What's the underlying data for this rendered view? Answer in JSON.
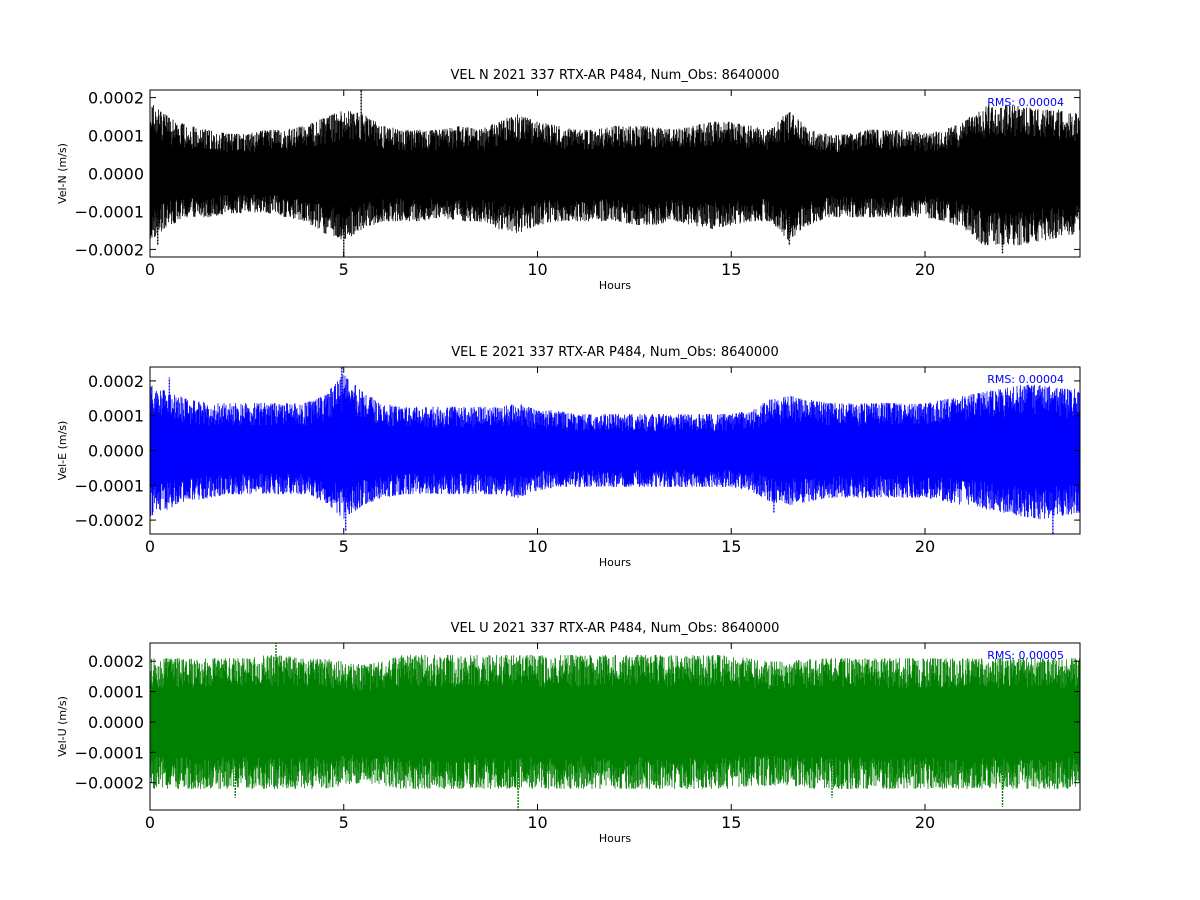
{
  "chart_data": [
    {
      "type": "line",
      "title": "VEL N 2021 337 RTX-AR  P484, Num_Obs: 8640000",
      "xlabel": "Hours",
      "ylabel": "Vel-N (m/s)",
      "xlim": [
        0,
        24
      ],
      "ylim": [
        -0.00022,
        0.00022
      ],
      "xticks": [
        0,
        5,
        10,
        15,
        20
      ],
      "xtick_labels": [
        "0",
        "5",
        "10",
        "15",
        "20"
      ],
      "yticks": [
        -0.0002,
        -0.0001,
        0.0,
        0.0001,
        0.0002
      ],
      "ytick_labels": [
        "−0.0002",
        "−0.0001",
        "0.0000",
        "0.0001",
        "0.0002"
      ],
      "annotation": "RMS:  0.00004",
      "annotation_color": "#0000ff",
      "grid": false,
      "series": [
        {
          "color": "#000000",
          "x": [
            0,
            0.5,
            1,
            1.5,
            2,
            2.5,
            3,
            3.5,
            4,
            4.5,
            5,
            5.5,
            6,
            6.5,
            7,
            7.5,
            8,
            8.5,
            9,
            9.5,
            10,
            10.5,
            11,
            11.5,
            12,
            12.5,
            13,
            13.5,
            14,
            14.5,
            15,
            15.5,
            16,
            16.5,
            17,
            17.5,
            18,
            18.5,
            19,
            19.5,
            20,
            20.5,
            21,
            21.5,
            22,
            22.5,
            23,
            23.5,
            24
          ],
          "upper": [
            0.00018,
            0.00014,
            0.00012,
            0.00011,
            0.0001,
            0.0001,
            0.00011,
            0.00011,
            0.00012,
            0.00014,
            0.00016,
            0.00015,
            0.00012,
            0.00011,
            0.00011,
            0.00011,
            0.00012,
            0.00011,
            0.00013,
            0.00015,
            0.00013,
            0.00012,
            0.00011,
            0.00011,
            0.00012,
            0.00012,
            0.00012,
            0.00011,
            0.00012,
            0.00013,
            0.00013,
            0.00012,
            0.00011,
            0.00016,
            0.00011,
            0.0001,
            0.0001,
            0.00011,
            0.00011,
            0.00011,
            0.0001,
            0.00011,
            0.00013,
            0.00017,
            0.00017,
            0.00017,
            0.00016,
            0.00016,
            0.00015
          ],
          "lower": [
            -0.00017,
            -0.00013,
            -0.00011,
            -0.00011,
            -0.0001,
            -0.0001,
            -0.0001,
            -0.00011,
            -0.00012,
            -0.00015,
            -0.00017,
            -0.00014,
            -0.00012,
            -0.00012,
            -0.00012,
            -0.00011,
            -0.00012,
            -0.00012,
            -0.00014,
            -0.00015,
            -0.00013,
            -0.00012,
            -0.00012,
            -0.00012,
            -0.00012,
            -0.00013,
            -0.00013,
            -0.00012,
            -0.00013,
            -0.00014,
            -0.00013,
            -0.00012,
            -0.00012,
            -0.00017,
            -0.00013,
            -0.00011,
            -0.00011,
            -0.00011,
            -0.00011,
            -0.00011,
            -0.00011,
            -0.00012,
            -0.00014,
            -0.00018,
            -0.00018,
            -0.00018,
            -0.00017,
            -0.00016,
            -0.00015
          ],
          "spikes": [
            [
              5.45,
              0.00022
            ],
            [
              5.0,
              -0.00022
            ],
            [
              22.0,
              -0.00021
            ],
            [
              0.2,
              -0.00019
            ],
            [
              16.5,
              -0.00019
            ]
          ]
        }
      ]
    },
    {
      "type": "line",
      "title": "VEL E 2021 337 RTX-AR  P484, Num_Obs: 8640000",
      "xlabel": "Hours",
      "ylabel": "Vel-E (m/s)",
      "xlim": [
        0,
        24
      ],
      "ylim": [
        -0.00024,
        0.00024
      ],
      "xticks": [
        0,
        5,
        10,
        15,
        20
      ],
      "xtick_labels": [
        "0",
        "5",
        "10",
        "15",
        "20"
      ],
      "yticks": [
        -0.0002,
        -0.0001,
        0.0,
        0.0001,
        0.0002
      ],
      "ytick_labels": [
        "−0.0002",
        "−0.0001",
        "0.0000",
        "0.0001",
        "0.0002"
      ],
      "annotation": "RMS:  0.00004",
      "annotation_color": "#0000ff",
      "grid": false,
      "series": [
        {
          "color": "#0000ff",
          "x": [
            0,
            0.5,
            1,
            1.5,
            2,
            2.5,
            3,
            3.5,
            4,
            4.5,
            5,
            5.5,
            6,
            6.5,
            7,
            7.5,
            8,
            8.5,
            9,
            9.5,
            10,
            10.5,
            11,
            11.5,
            12,
            12.5,
            13,
            13.5,
            14,
            14.5,
            15,
            15.5,
            16,
            16.5,
            17,
            17.5,
            18,
            18.5,
            19,
            19.5,
            20,
            20.5,
            21,
            21.5,
            22,
            22.5,
            23,
            23.5,
            24
          ],
          "upper": [
            0.00018,
            0.00016,
            0.00014,
            0.00013,
            0.00013,
            0.00013,
            0.00013,
            0.00013,
            0.00013,
            0.00015,
            0.00021,
            0.00016,
            0.00013,
            0.00012,
            0.00012,
            0.00012,
            0.00012,
            0.00012,
            0.00012,
            0.00013,
            0.00011,
            0.00011,
            0.0001,
            0.0001,
            0.0001,
            0.0001,
            0.0001,
            0.0001,
            0.0001,
            0.0001,
            0.0001,
            0.00011,
            0.00014,
            0.00015,
            0.00014,
            0.00013,
            0.00013,
            0.00013,
            0.00013,
            0.00013,
            0.00013,
            0.00014,
            0.00015,
            0.00016,
            0.00017,
            0.00018,
            0.00018,
            0.00017,
            0.00017
          ],
          "lower": [
            -0.00018,
            -0.00016,
            -0.00014,
            -0.00013,
            -0.00012,
            -0.00012,
            -0.00012,
            -0.00012,
            -0.00012,
            -0.00014,
            -0.00019,
            -0.00015,
            -0.00013,
            -0.00012,
            -0.00012,
            -0.00012,
            -0.00012,
            -0.00012,
            -0.00012,
            -0.00013,
            -0.00011,
            -0.0001,
            -0.0001,
            -0.0001,
            -0.0001,
            -0.0001,
            -0.0001,
            -0.0001,
            -0.0001,
            -0.0001,
            -0.0001,
            -0.00011,
            -0.00014,
            -0.00015,
            -0.00014,
            -0.00013,
            -0.00013,
            -0.00013,
            -0.00013,
            -0.00013,
            -0.00013,
            -0.00014,
            -0.00015,
            -0.00016,
            -0.00017,
            -0.00018,
            -0.00019,
            -0.00018,
            -0.00017
          ],
          "spikes": [
            [
              4.95,
              0.00024
            ],
            [
              5.05,
              -0.00023
            ],
            [
              23.3,
              -0.00024
            ],
            [
              0.5,
              0.00021
            ],
            [
              16.1,
              -0.00018
            ]
          ]
        }
      ]
    },
    {
      "type": "line",
      "title": "VEL U 2021 337 RTX-AR  P484, Num_Obs: 8640000",
      "xlabel": "Hours",
      "ylabel": "Vel-U (m/s)",
      "xlim": [
        0,
        24
      ],
      "ylim": [
        -0.00029,
        0.00026
      ],
      "xticks": [
        0,
        5,
        10,
        15,
        20
      ],
      "xtick_labels": [
        "0",
        "5",
        "10",
        "15",
        "20"
      ],
      "yticks": [
        -0.0002,
        -0.0001,
        0.0,
        0.0001,
        0.0002
      ],
      "ytick_labels": [
        "−0.0002",
        "−0.0001",
        "0.0000",
        "0.0001",
        "0.0002"
      ],
      "annotation": "RMS:  0.00005",
      "annotation_color": "#0000ff",
      "grid": false,
      "series": [
        {
          "color": "#008000",
          "x": [
            0,
            0.5,
            1,
            1.5,
            2,
            2.5,
            3,
            3.5,
            4,
            4.5,
            5,
            5.5,
            6,
            6.5,
            7,
            7.5,
            8,
            8.5,
            9,
            9.5,
            10,
            10.5,
            11,
            11.5,
            12,
            12.5,
            13,
            13.5,
            14,
            14.5,
            15,
            15.5,
            16,
            16.5,
            17,
            17.5,
            18,
            18.5,
            19,
            19.5,
            20,
            20.5,
            21,
            21.5,
            22,
            22.5,
            23,
            23.5,
            24
          ],
          "upper": [
            0.0002,
            0.0002,
            0.0002,
            0.0002,
            0.0002,
            0.0002,
            0.00021,
            0.00021,
            0.0002,
            0.0002,
            0.00019,
            0.00018,
            0.00019,
            0.00021,
            0.00021,
            0.00021,
            0.00021,
            0.00021,
            0.00021,
            0.00021,
            0.00021,
            0.00021,
            0.00021,
            0.00021,
            0.00021,
            0.00021,
            0.00021,
            0.00021,
            0.00021,
            0.00021,
            0.00021,
            0.0002,
            0.00019,
            0.00019,
            0.0002,
            0.0002,
            0.0002,
            0.0002,
            0.0002,
            0.0002,
            0.0002,
            0.0002,
            0.0002,
            0.0002,
            0.0002,
            0.0002,
            0.0002,
            0.0002,
            0.0002
          ],
          "lower": [
            -0.00021,
            -0.00021,
            -0.00021,
            -0.00021,
            -0.00021,
            -0.00021,
            -0.00021,
            -0.00021,
            -0.00021,
            -0.00021,
            -0.0002,
            -0.00019,
            -0.0002,
            -0.00021,
            -0.00021,
            -0.00021,
            -0.00021,
            -0.00021,
            -0.00021,
            -0.00021,
            -0.00021,
            -0.00021,
            -0.00021,
            -0.00021,
            -0.00021,
            -0.00021,
            -0.00021,
            -0.00021,
            -0.00021,
            -0.00021,
            -0.00021,
            -0.0002,
            -0.0002,
            -0.0002,
            -0.00021,
            -0.00021,
            -0.00021,
            -0.00021,
            -0.00021,
            -0.00021,
            -0.00021,
            -0.00021,
            -0.00021,
            -0.00021,
            -0.00021,
            -0.00021,
            -0.00021,
            -0.00021,
            -0.00021
          ],
          "spikes": [
            [
              3.25,
              0.00026
            ],
            [
              9.5,
              -0.00029
            ],
            [
              22.0,
              -0.00028
            ],
            [
              2.2,
              -0.00025
            ],
            [
              17.6,
              -0.00025
            ]
          ]
        }
      ]
    }
  ]
}
